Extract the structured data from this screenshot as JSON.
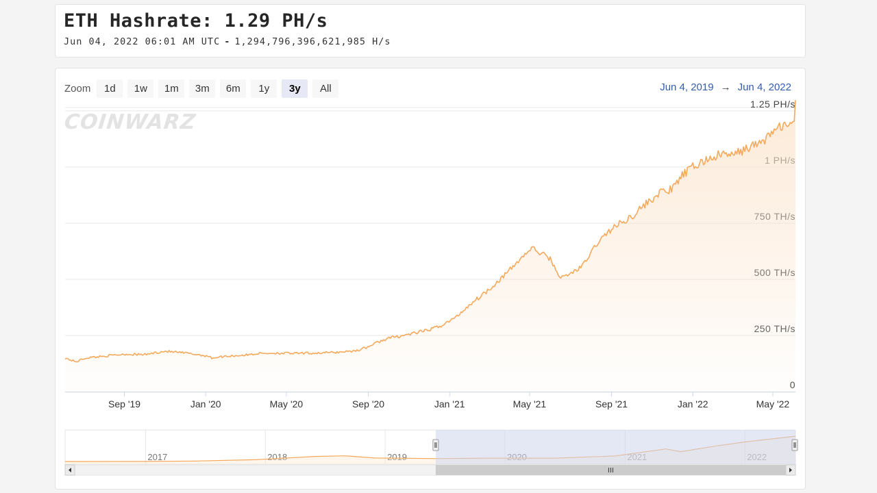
{
  "header": {
    "title": "ETH Hashrate: 1.29 PH/s",
    "timestamp": "Jun 04, 2022 06:01 AM UTC",
    "separator": "-",
    "hashrate_full": "1,294,796,396,621,985 H/s"
  },
  "toolbar": {
    "zoom_label": "Zoom",
    "zoom_options": [
      "1d",
      "1w",
      "1m",
      "3m",
      "6m",
      "1y",
      "3y",
      "All"
    ],
    "active_zoom": "3y",
    "range_from": "Jun 4, 2019",
    "range_arrow": "→",
    "range_to": "Jun 4, 2022"
  },
  "watermark": "COINWARZ",
  "colors": {
    "line": "#f4a95b",
    "area_top": "#fbe3cb",
    "navigator_mask": "#cdd5ec",
    "range_text": "#335cad"
  },
  "chart_data": {
    "type": "area",
    "series": [
      {
        "unit": "TH/s",
        "points": [
          [
            "2019-06-04",
            150
          ],
          [
            "2019-06-20",
            133
          ],
          [
            "2019-07-05",
            150
          ],
          [
            "2019-08-01",
            158
          ],
          [
            "2019-09-01",
            167
          ],
          [
            "2019-10-01",
            165
          ],
          [
            "2019-11-01",
            180
          ],
          [
            "2019-12-01",
            172
          ],
          [
            "2019-12-20",
            165
          ],
          [
            "2020-01-05",
            158
          ],
          [
            "2020-01-10",
            150
          ],
          [
            "2020-02-01",
            158
          ],
          [
            "2020-03-01",
            163
          ],
          [
            "2020-03-20",
            170
          ],
          [
            "2020-04-15",
            172
          ],
          [
            "2020-05-15",
            170
          ],
          [
            "2020-06-15",
            172
          ],
          [
            "2020-07-15",
            175
          ],
          [
            "2020-08-15",
            183
          ],
          [
            "2020-09-01",
            200
          ],
          [
            "2020-09-15",
            220
          ],
          [
            "2020-10-01",
            238
          ],
          [
            "2020-11-01",
            255
          ],
          [
            "2020-12-01",
            275
          ],
          [
            "2020-12-20",
            295
          ],
          [
            "2021-01-10",
            330
          ],
          [
            "2021-02-01",
            390
          ],
          [
            "2021-03-01",
            455
          ],
          [
            "2021-04-01",
            540
          ],
          [
            "2021-04-20",
            600
          ],
          [
            "2021-05-05",
            640
          ],
          [
            "2021-05-15",
            620
          ],
          [
            "2021-05-31",
            595
          ],
          [
            "2021-06-10",
            540
          ],
          [
            "2021-06-18",
            505
          ],
          [
            "2021-07-01",
            525
          ],
          [
            "2021-07-20",
            560
          ],
          [
            "2021-08-10",
            660
          ],
          [
            "2021-09-01",
            725
          ],
          [
            "2021-10-01",
            780
          ],
          [
            "2021-10-20",
            830
          ],
          [
            "2021-11-15",
            890
          ],
          [
            "2021-12-01",
            900
          ],
          [
            "2021-12-15",
            960
          ],
          [
            "2022-01-01",
            1000
          ],
          [
            "2022-01-20",
            1030
          ],
          [
            "2022-02-15",
            1060
          ],
          [
            "2022-03-01",
            1050
          ],
          [
            "2022-03-20",
            1080
          ],
          [
            "2022-04-15",
            1110
          ],
          [
            "2022-05-01",
            1160
          ],
          [
            "2022-05-20",
            1190
          ],
          [
            "2022-06-01",
            1180
          ],
          [
            "2022-06-04",
            1290
          ]
        ]
      }
    ],
    "y_ticks": [
      {
        "value": 0,
        "label": "0"
      },
      {
        "value": 250,
        "label": "250 TH/s"
      },
      {
        "value": 500,
        "label": "500 TH/s"
      },
      {
        "value": 750,
        "label": "750 TH/s"
      },
      {
        "value": 1000,
        "label": "1 PH/s"
      },
      {
        "value": 1250,
        "label": "1.25 PH/s"
      }
    ],
    "x_ticks": [
      {
        "date": "2019-09-01",
        "label": "Sep '19"
      },
      {
        "date": "2020-01-01",
        "label": "Jan '20"
      },
      {
        "date": "2020-05-01",
        "label": "May '20"
      },
      {
        "date": "2020-09-01",
        "label": "Sep '20"
      },
      {
        "date": "2021-01-01",
        "label": "Jan '21"
      },
      {
        "date": "2021-05-01",
        "label": "May '21"
      },
      {
        "date": "2021-09-01",
        "label": "Sep '21"
      },
      {
        "date": "2022-01-01",
        "label": "Jan '22"
      },
      {
        "date": "2022-05-01",
        "label": "May '22"
      }
    ],
    "xlim": [
      "2019-06-04",
      "2022-06-04"
    ],
    "ylim": [
      0,
      1250
    ],
    "grid": true,
    "navigator": {
      "xlim": [
        "2016-05-01",
        "2022-06-04"
      ],
      "ticks": [
        {
          "date": "2017-01-01",
          "label": "2017"
        },
        {
          "date": "2018-01-01",
          "label": "2018"
        },
        {
          "date": "2019-01-01",
          "label": "2019"
        },
        {
          "date": "2020-01-01",
          "label": "2020"
        },
        {
          "date": "2021-01-01",
          "label": "2021"
        },
        {
          "date": "2022-01-01",
          "label": "2022"
        }
      ],
      "selected": [
        "2019-06-04",
        "2022-06-04"
      ],
      "history": [
        [
          "2016-05-01",
          1
        ],
        [
          "2017-01-01",
          3
        ],
        [
          "2017-06-01",
          25
        ],
        [
          "2017-12-01",
          90
        ],
        [
          "2018-06-01",
          260
        ],
        [
          "2018-09-01",
          290
        ],
        [
          "2018-12-01",
          180
        ],
        [
          "2019-06-01",
          150
        ],
        [
          "2019-12-01",
          172
        ],
        [
          "2020-06-01",
          172
        ],
        [
          "2020-12-01",
          285
        ],
        [
          "2021-05-05",
          640
        ],
        [
          "2021-06-20",
          505
        ],
        [
          "2021-10-01",
          780
        ],
        [
          "2022-01-01",
          1000
        ],
        [
          "2022-06-04",
          1290
        ]
      ]
    }
  }
}
